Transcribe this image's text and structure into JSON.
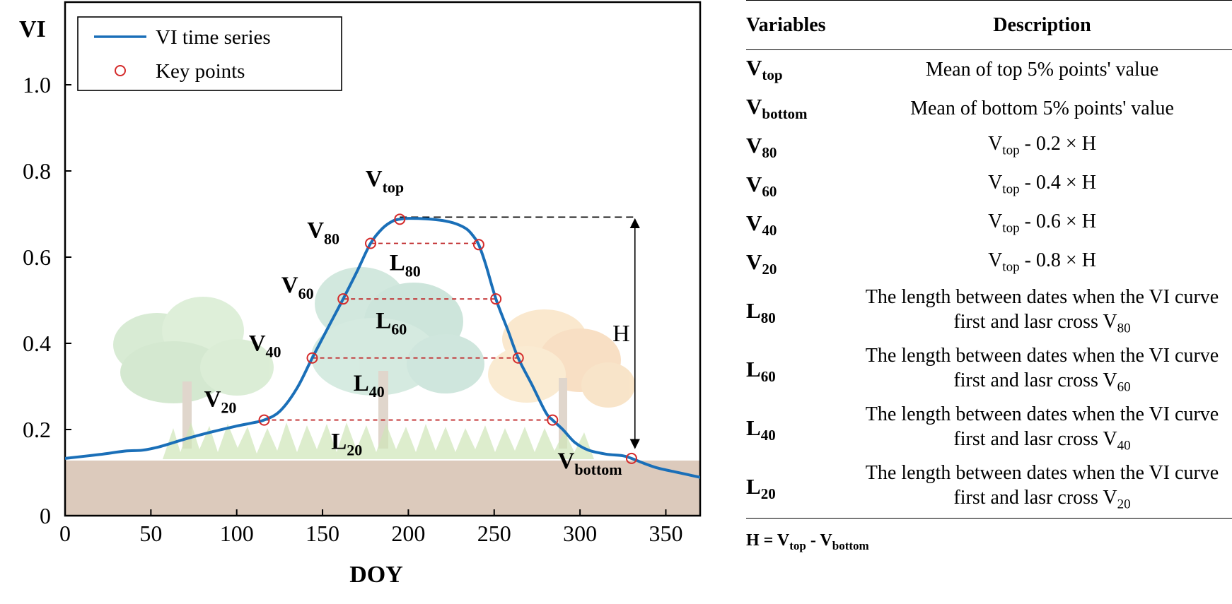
{
  "chart_data": {
    "type": "line",
    "xlabel": "DOY",
    "ylabel": "VI",
    "xlim": [
      0,
      370
    ],
    "ylim": [
      0,
      1.1
    ],
    "xticks": [
      0,
      50,
      100,
      150,
      200,
      250,
      300,
      350
    ],
    "yticks": [
      0,
      0.2,
      0.4,
      0.6,
      0.8,
      1.0
    ],
    "ytick_labels": [
      "0",
      "0.2",
      "0.4",
      "0.6",
      "0.8",
      "1.0"
    ],
    "grid": false,
    "legend_position": "top-left",
    "series": [
      {
        "name": "VI time series",
        "color": "#1a6fb8",
        "x": [
          0,
          20,
          35,
          45,
          55,
          70,
          85,
          100,
          110,
          116,
          125,
          135,
          144,
          155,
          162,
          170,
          178,
          185,
          191,
          195,
          200,
          210,
          220,
          228,
          234,
          238,
          241,
          245,
          251,
          258,
          264,
          272,
          280,
          284,
          290,
          297,
          305,
          315,
          325,
          330,
          337,
          345,
          355,
          362,
          370
        ],
        "y": [
          0.133,
          0.142,
          0.15,
          0.152,
          0.16,
          0.178,
          0.194,
          0.208,
          0.216,
          0.222,
          0.242,
          0.295,
          0.366,
          0.45,
          0.503,
          0.566,
          0.632,
          0.667,
          0.684,
          0.688,
          0.69,
          0.689,
          0.685,
          0.677,
          0.665,
          0.648,
          0.629,
          0.584,
          0.503,
          0.43,
          0.366,
          0.304,
          0.24,
          0.222,
          0.2,
          0.17,
          0.152,
          0.143,
          0.139,
          0.133,
          0.122,
          0.111,
          0.102,
          0.096,
          0.089
        ]
      },
      {
        "name": "Key points",
        "color": "#d42a2a",
        "x": [
          116,
          144,
          162,
          178,
          195,
          241,
          251,
          264,
          284,
          330
        ],
        "y": [
          0.222,
          0.366,
          0.503,
          0.632,
          0.688,
          0.629,
          0.503,
          0.366,
          0.222,
          0.133
        ]
      }
    ],
    "level_lines": [
      {
        "label": "L80",
        "x": [
          178,
          241
        ],
        "y": 0.632
      },
      {
        "label": "L60",
        "x": [
          162,
          251
        ],
        "y": 0.503
      },
      {
        "label": "L40",
        "x": [
          144,
          264
        ],
        "y": 0.366
      },
      {
        "label": "L20",
        "x": [
          116,
          284
        ],
        "y": 0.222
      }
    ],
    "top_reference": {
      "x": [
        195,
        332
      ],
      "y": 0.693
    },
    "height_arrow": {
      "label": "H",
      "x": 332,
      "y": [
        0.693,
        0.152
      ]
    },
    "annotations": [
      {
        "main": "V",
        "sub": "top",
        "x": 175,
        "y": 0.765
      },
      {
        "main": "V",
        "sub": "80",
        "x": 141,
        "y": 0.645
      },
      {
        "main": "V",
        "sub": "60",
        "x": 126,
        "y": 0.518
      },
      {
        "main": "V",
        "sub": "40",
        "x": 107,
        "y": 0.383
      },
      {
        "main": "V",
        "sub": "20",
        "x": 81,
        "y": 0.253
      },
      {
        "main": "L",
        "sub": "80",
        "x": 189,
        "y": 0.57
      },
      {
        "main": "L",
        "sub": "60",
        "x": 181,
        "y": 0.435
      },
      {
        "main": "L",
        "sub": "40",
        "x": 168,
        "y": 0.29
      },
      {
        "main": "L",
        "sub": "20",
        "x": 155,
        "y": 0.155
      },
      {
        "main": "V",
        "sub": "bottom",
        "x": 287,
        "y": 0.11
      },
      {
        "main": "H",
        "sub": "",
        "x": 324,
        "y": 0.405
      }
    ],
    "background": {
      "soil_color": "#dccabc",
      "soil_top": 0.128
    }
  },
  "table": {
    "headers": {
      "variables": "Variables",
      "description": "Description"
    },
    "rows": [
      {
        "var": "V",
        "var_sub": "top",
        "desc": [
          {
            "t": "Mean of top 5% points' value"
          }
        ]
      },
      {
        "var": "V",
        "var_sub": "bottom",
        "desc": [
          {
            "t": "Mean of bottom 5% points' value"
          }
        ]
      },
      {
        "var": "V",
        "var_sub": "80",
        "desc": [
          {
            "t": "V"
          },
          {
            "s": "top"
          },
          {
            "t": " - 0.2 × H"
          }
        ]
      },
      {
        "var": "V",
        "var_sub": "60",
        "desc": [
          {
            "t": "V"
          },
          {
            "s": "top"
          },
          {
            "t": " - 0.4 × H"
          }
        ]
      },
      {
        "var": "V",
        "var_sub": "40",
        "desc": [
          {
            "t": "V"
          },
          {
            "s": "top"
          },
          {
            "t": " - 0.6 × H"
          }
        ]
      },
      {
        "var": "V",
        "var_sub": "20",
        "desc": [
          {
            "t": "V"
          },
          {
            "s": "top"
          },
          {
            "t": " - 0.8 × H"
          }
        ]
      },
      {
        "var": "L",
        "var_sub": "80",
        "desc": [
          {
            "t": "The length between dates when the VI curve"
          },
          {
            "br": true
          },
          {
            "t": "first and lasr cross V"
          },
          {
            "s": "80"
          }
        ]
      },
      {
        "var": "L",
        "var_sub": "60",
        "desc": [
          {
            "t": "The length between dates when the VI curve"
          },
          {
            "br": true
          },
          {
            "t": "first and lasr cross V"
          },
          {
            "s": "60"
          }
        ]
      },
      {
        "var": "L",
        "var_sub": "40",
        "desc": [
          {
            "t": "The length between dates when the VI curve"
          },
          {
            "br": true
          },
          {
            "t": "first and lasr cross V"
          },
          {
            "s": "40"
          }
        ]
      },
      {
        "var": "L",
        "var_sub": "20",
        "desc": [
          {
            "t": "The length between dates when the VI curve"
          },
          {
            "br": true
          },
          {
            "t": "first and lasr cross V"
          },
          {
            "s": "20"
          }
        ]
      }
    ],
    "footnote": [
      {
        "t": "H = V"
      },
      {
        "s": "top"
      },
      {
        "t": " - V"
      },
      {
        "s": "bottom"
      }
    ]
  }
}
